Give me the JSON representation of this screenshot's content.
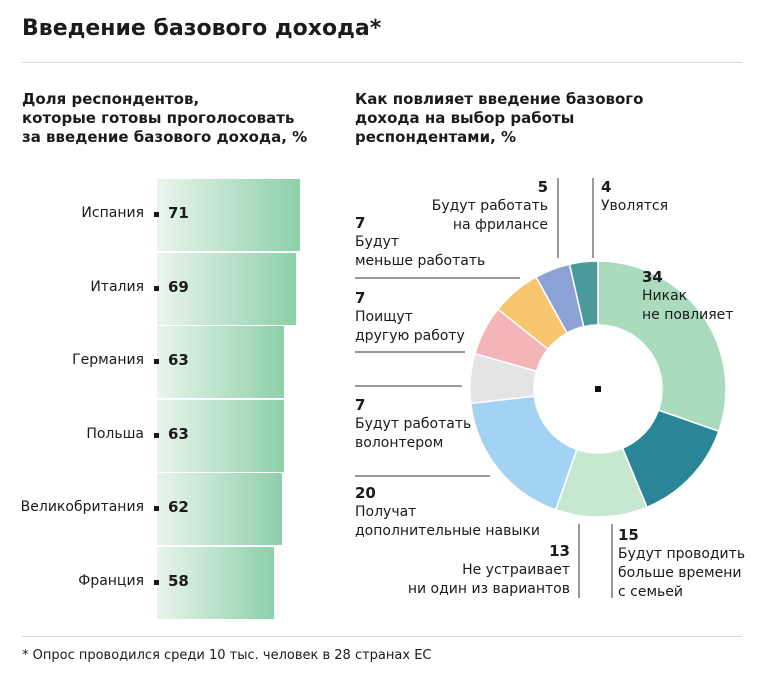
{
  "title": "Введение базового дохода*",
  "footnote": "* Опрос проводился среди 10 тыс. человек в 28 странах ЕС",
  "colors": {
    "bar_start": "#e9f5ec",
    "bar_end": "#8dd0a9"
  },
  "chart_data": [
    {
      "type": "bar",
      "orientation": "horizontal",
      "title": "Доля респондентов,\nкоторые готовы проголосовать\nза введение базового дохода, %",
      "categories": [
        "Испания",
        "Италия",
        "Германия",
        "Польша",
        "Великобритания",
        "Франция"
      ],
      "values": [
        71,
        69,
        63,
        63,
        62,
        58
      ],
      "value_labels": [
        "71",
        "69",
        "63",
        "63",
        "62",
        "58"
      ]
    },
    {
      "type": "pie",
      "variant": "donut",
      "title": "Как повлияет введение базового\nдохода на выбор работы\nреспондентами, %",
      "slices": [
        {
          "value": 34,
          "label": "34",
          "text": "Никак\nне повлияет",
          "color": "#a9dbbc"
        },
        {
          "value": 15,
          "label": "15",
          "text": "Будут проводить\nбольше времени\nс семьей",
          "color": "#2a8596"
        },
        {
          "value": 13,
          "label": "13",
          "text": "Не устраивает\nни один из вариантов",
          "color": "#c6e8d0"
        },
        {
          "value": 20,
          "label": "20",
          "text": "Получат\nдополнительные навыки",
          "color": "#a4d2f2"
        },
        {
          "value": 7,
          "label": "7",
          "text": "Будут работать\nволонтером",
          "color": "#e4e4e4"
        },
        {
          "value": 7,
          "label": "7",
          "text": "Поищут\nдругую работу",
          "color": "#f3b5b8"
        },
        {
          "value": 7,
          "label": "7",
          "text": "Будут\nменьше работать",
          "color": "#f7c66e"
        },
        {
          "value": 5,
          "label": "5",
          "text": "Будут работать\nна фрилансе",
          "color": "#8ca2d6"
        },
        {
          "value": 4,
          "label": "4",
          "text": "Уволятся",
          "color": "#4a9a9a"
        }
      ]
    }
  ]
}
